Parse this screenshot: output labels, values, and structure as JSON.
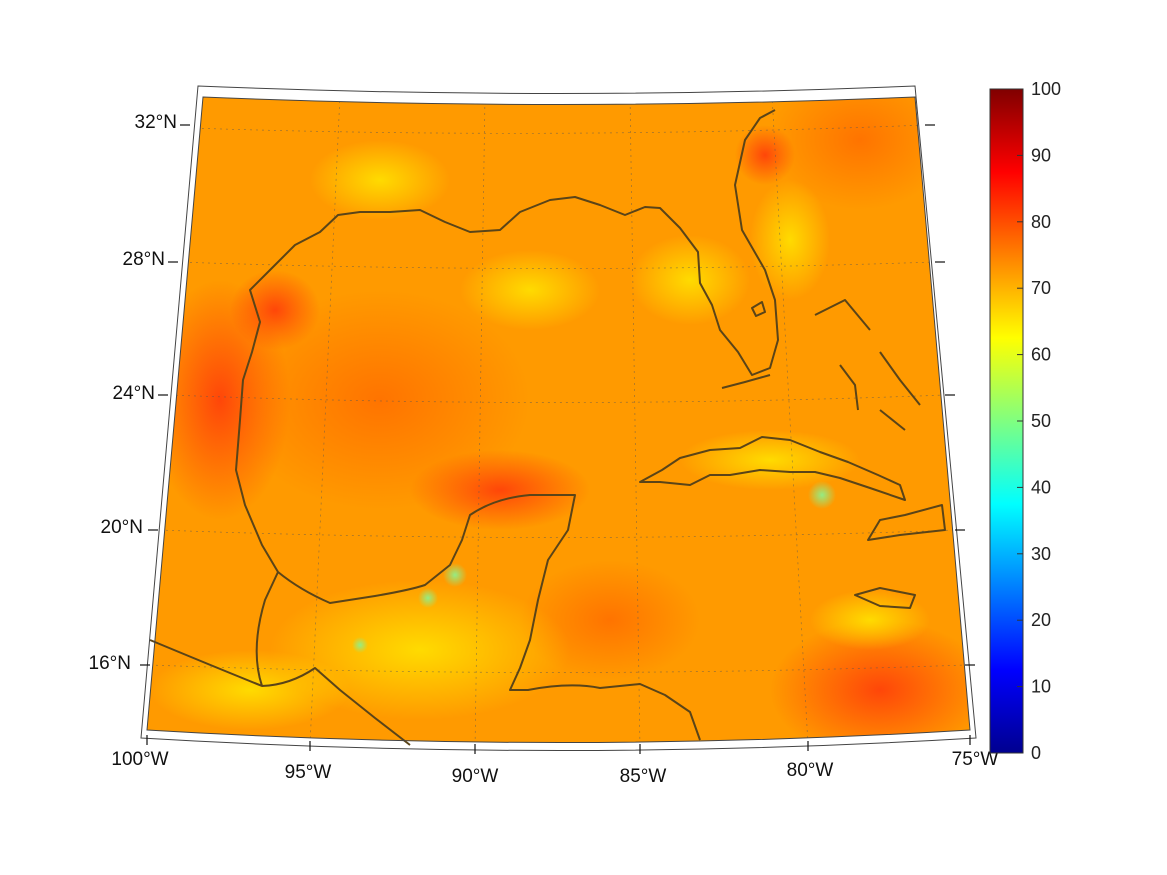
{
  "figure": {
    "type": "map",
    "projection": "conic",
    "colormap": "jet",
    "color_range": [
      0,
      100
    ],
    "field_colors": {
      "dominant": "#ff9a00",
      "high": "#ff4a0a",
      "low": "#ffd900",
      "min_spot": "#7cf07a"
    },
    "coastline_color": "#5a4418",
    "gridlines": true,
    "coastlines": true
  },
  "lat_labels": [
    "32°N",
    "28°N",
    "24°N",
    "20°N",
    "16°N"
  ],
  "lon_labels": [
    "100°W",
    "95°W",
    "90°W",
    "85°W",
    "80°W",
    "75°W"
  ],
  "colorbar": {
    "ticks": [
      "100",
      "90",
      "80",
      "70",
      "60",
      "50",
      "40",
      "30",
      "20",
      "10",
      "0"
    ],
    "range": [
      0,
      100
    ],
    "colors": [
      "#00008f",
      "#0000ff",
      "#00ffff",
      "#80ff80",
      "#ffff00",
      "#ff8000",
      "#ff0000",
      "#800000"
    ]
  }
}
